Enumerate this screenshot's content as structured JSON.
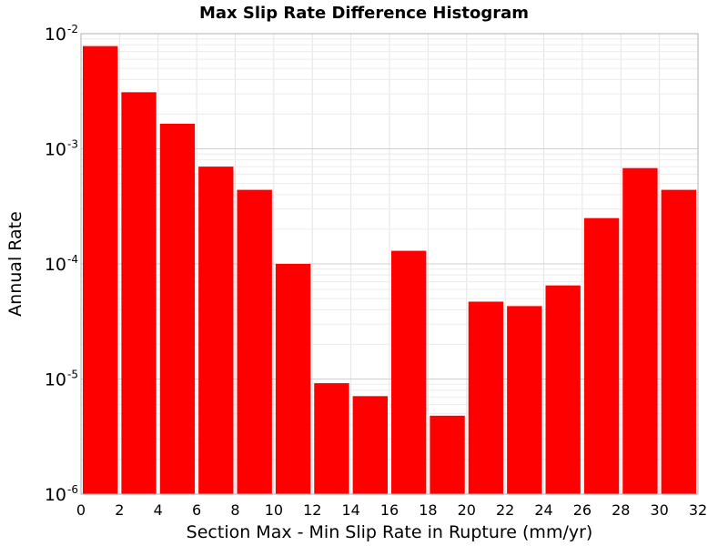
{
  "chart_data": {
    "type": "bar",
    "title": "Max Slip Rate Difference Histogram",
    "xlabel": "Section Max - Min Slip Rate in Rupture (mm/yr)",
    "ylabel": "Annual Rate",
    "xlim": [
      0,
      32
    ],
    "ylim": [
      1e-06,
      0.01
    ],
    "yscale": "log",
    "grid": true,
    "bar_color": "#ff0000",
    "bin_width": 2,
    "x_ticks": [
      "0",
      "2",
      "4",
      "6",
      "8",
      "10",
      "12",
      "14",
      "16",
      "18",
      "20",
      "22",
      "24",
      "26",
      "28",
      "30",
      "32"
    ],
    "y_ticks": [
      {
        "base": "10",
        "exp": "-6"
      },
      {
        "base": "10",
        "exp": "-5"
      },
      {
        "base": "10",
        "exp": "-4"
      },
      {
        "base": "10",
        "exp": "-3"
      },
      {
        "base": "10",
        "exp": "-2"
      }
    ],
    "bins": [
      {
        "x_start": 0,
        "x_end": 2,
        "value": 0.0078
      },
      {
        "x_start": 2,
        "x_end": 4,
        "value": 0.0031
      },
      {
        "x_start": 4,
        "x_end": 6,
        "value": 0.00165
      },
      {
        "x_start": 6,
        "x_end": 8,
        "value": 0.0007
      },
      {
        "x_start": 8,
        "x_end": 10,
        "value": 0.00044
      },
      {
        "x_start": 10,
        "x_end": 12,
        "value": 0.0001
      },
      {
        "x_start": 12,
        "x_end": 14,
        "value": 9.2e-06
      },
      {
        "x_start": 14,
        "x_end": 16,
        "value": 7.1e-06
      },
      {
        "x_start": 16,
        "x_end": 18,
        "value": 0.00013
      },
      {
        "x_start": 18,
        "x_end": 20,
        "value": 4.8e-06
      },
      {
        "x_start": 20,
        "x_end": 22,
        "value": 4.7e-05
      },
      {
        "x_start": 22,
        "x_end": 24,
        "value": 4.3e-05
      },
      {
        "x_start": 24,
        "x_end": 26,
        "value": 6.5e-05
      },
      {
        "x_start": 26,
        "x_end": 28,
        "value": 0.00025
      },
      {
        "x_start": 28,
        "x_end": 30,
        "value": 0.00068
      },
      {
        "x_start": 30,
        "x_end": 32,
        "value": 0.00044
      }
    ]
  }
}
